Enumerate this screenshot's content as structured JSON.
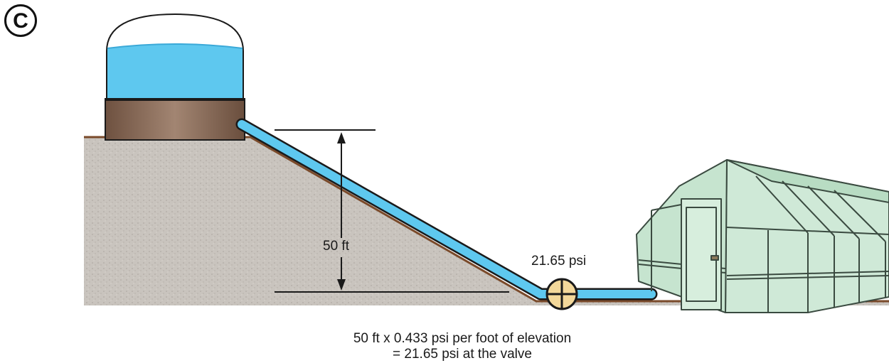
{
  "panel_letter": "C",
  "labels": {
    "height": "50 ft",
    "pressure": "21.65 psi",
    "formula_line1": "50 ft x 0.433 psi per foot of elevation",
    "formula_line2": "= 21.65 psi at the valve"
  },
  "colors": {
    "water": "#5ec8ef",
    "water_dark": "#3ba9d8",
    "tank_base": "#8a6a52",
    "ground_fill": "#c8c3bd",
    "ground_line": "#7a4a2a",
    "valve": "#f3d89a",
    "greenhouse": "#c9e6d2",
    "greenhouse_line": "#3a4a40"
  },
  "icons": [
    "water-tank",
    "pipe",
    "valve-icon",
    "greenhouse",
    "dimension-arrow"
  ]
}
